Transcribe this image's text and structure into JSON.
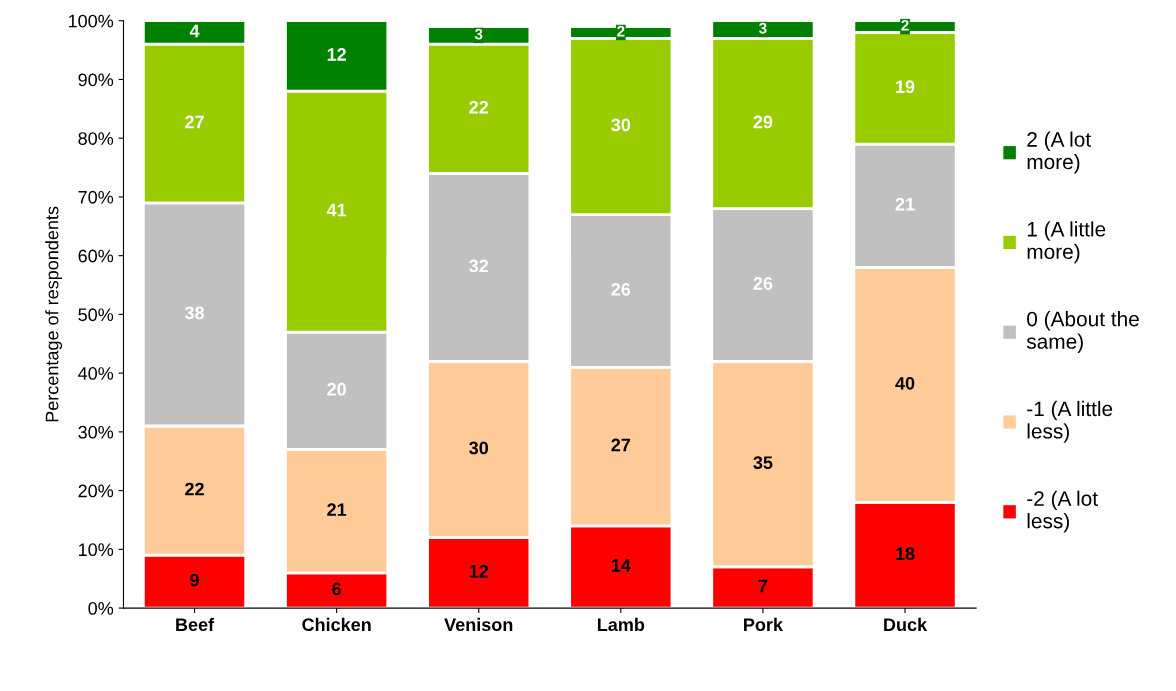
{
  "chart_data": {
    "type": "bar",
    "stacked": true,
    "ylabel": "Percentage of respondents",
    "categories": [
      "Beef",
      "Chicken",
      "Venison",
      "Lamb",
      "Pork",
      "Duck"
    ],
    "series": [
      {
        "name": "-2 (A lot\nless)",
        "color": "#ff0000",
        "values": [
          9,
          6,
          12,
          14,
          7,
          18
        ]
      },
      {
        "name": "-1 (A little\nless)",
        "color": "#ffcc99",
        "values": [
          22,
          21,
          30,
          27,
          35,
          40
        ]
      },
      {
        "name": "0 (About the\nsame)",
        "color": "#c0c0c0",
        "values": [
          38,
          20,
          32,
          26,
          26,
          21
        ]
      },
      {
        "name": "1 (A little\nmore)",
        "color": "#99cc00",
        "values": [
          27,
          41,
          22,
          30,
          29,
          19
        ]
      },
      {
        "name": "2 (A lot\nmore)",
        "color": "#008000",
        "values": [
          4,
          12,
          3,
          2,
          3,
          2
        ]
      }
    ],
    "ylim": [
      0,
      100
    ],
    "yticks": [
      {
        "value": 0,
        "label": "0%"
      },
      {
        "value": 10,
        "label": "10%"
      },
      {
        "value": 20,
        "label": "20%"
      },
      {
        "value": 30,
        "label": "30%"
      },
      {
        "value": 40,
        "label": "40%"
      },
      {
        "value": 50,
        "label": "50%"
      },
      {
        "value": 60,
        "label": "60%"
      },
      {
        "value": 70,
        "label": "70%"
      },
      {
        "value": 80,
        "label": "80%"
      },
      {
        "value": 90,
        "label": "90%"
      },
      {
        "value": 100,
        "label": "100%"
      }
    ],
    "data_labels": true,
    "legend": "right",
    "grid": false
  }
}
